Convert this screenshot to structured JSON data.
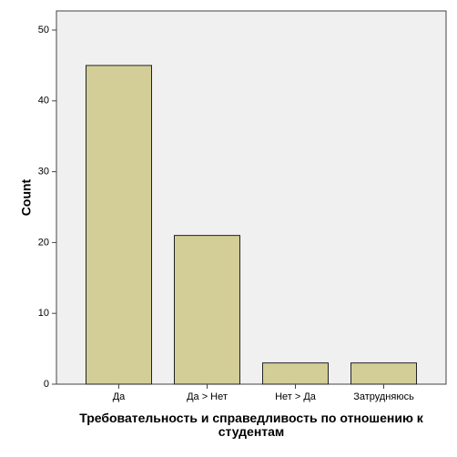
{
  "chart_data": {
    "type": "bar",
    "x_label": "Требовательность и справедливость по отношению к студентам",
    "y_label": "Count",
    "categories": [
      "Да",
      "Да > Нет",
      "Нет > Да",
      "Затрудняюсь"
    ],
    "values": [
      45,
      21,
      3,
      3
    ],
    "color": "#d3ce97",
    "ylim": [
      0,
      52.7
    ],
    "yticks": [
      0,
      10,
      20,
      30,
      40,
      50
    ],
    "grid": false
  }
}
